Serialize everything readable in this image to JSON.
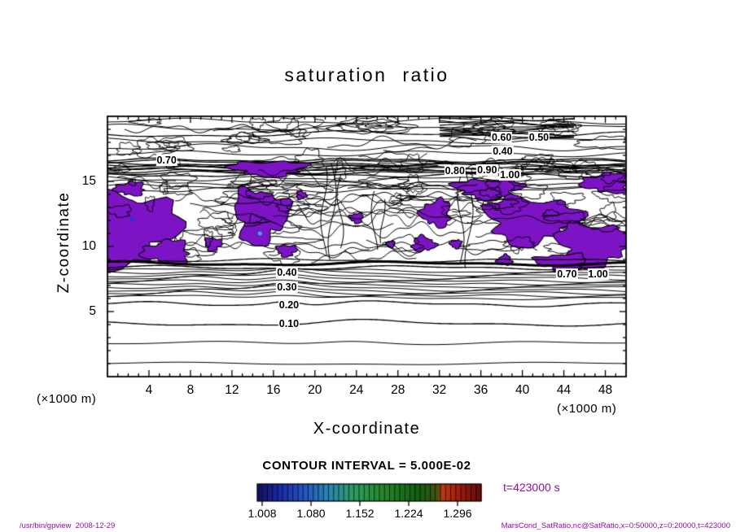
{
  "window": {
    "background": "#ffffff"
  },
  "footer": {
    "left": "/usr/bin/gpview  2008-12-29",
    "right": "MarsCond_SatRatio.nc@SatRatio,x=0:50000,z=0:20000,t=423000"
  },
  "colors": {
    "text": "#000000",
    "annotation": "#8e109e",
    "contour_line": "#000000",
    "fill_purple": "#7c13c4",
    "speck_blue": "#2436d8",
    "speck_cyan": "#25b8dc"
  },
  "chart_data": {
    "type": "contour",
    "title": "saturation ratio",
    "xlabel": "X-coordinate",
    "ylabel": "Z-coordinate",
    "x_unit_left": "(×1000 m)",
    "x_unit_right": "(×1000 m)",
    "xlim": [
      0,
      50
    ],
    "ylim": [
      0,
      20
    ],
    "x_ticks": [
      4,
      8,
      12,
      16,
      20,
      24,
      28,
      32,
      36,
      40,
      44,
      48
    ],
    "y_ticks": [
      5,
      10,
      15
    ],
    "grid": false,
    "contour_interval": 0.05,
    "contour_interval_label": "CONTOUR INTERVAL = 5.000E-02",
    "time_annotation": "t=423000 s",
    "contour_labels": [
      {
        "text": "0.10",
        "x": 17.5,
        "z": 4.05
      },
      {
        "text": "0.20",
        "x": 17.5,
        "z": 5.5
      },
      {
        "text": "0.30",
        "x": 17.3,
        "z": 6.9
      },
      {
        "text": "0.40",
        "x": 17.3,
        "z": 8.0
      },
      {
        "text": "0.70",
        "x": 44.3,
        "z": 7.9
      },
      {
        "text": "1.00",
        "x": 47.3,
        "z": 7.9
      },
      {
        "text": "0.70",
        "x": 5.7,
        "z": 16.6
      },
      {
        "text": "0.80",
        "x": 33.5,
        "z": 15.8
      },
      {
        "text": "0.90",
        "x": 36.6,
        "z": 15.9
      },
      {
        "text": "1.00",
        "x": 38.8,
        "z": 15.5
      },
      {
        "text": "0.40",
        "x": 38.1,
        "z": 17.3
      },
      {
        "text": "0.60",
        "x": 38.0,
        "z": 18.4
      },
      {
        "text": "0.50",
        "x": 41.6,
        "z": 18.4
      }
    ],
    "blobs": [
      {
        "x": 1.41,
        "z": 11.44,
        "rx": 5.1,
        "rz": 2.81
      },
      {
        "x": 5.73,
        "z": 9.56,
        "rx": 2.2,
        "rz": 0.88
      },
      {
        "x": 15.54,
        "z": 16.0,
        "rx": 3.53,
        "rz": 0.56
      },
      {
        "x": 14.76,
        "z": 12.38,
        "rx": 2.51,
        "rz": 2.06
      },
      {
        "x": 10.2,
        "z": 10.19,
        "rx": 0.78,
        "rz": 0.5
      },
      {
        "x": 17.27,
        "z": 9.69,
        "rx": 0.94,
        "rz": 0.44
      },
      {
        "x": 24.02,
        "z": 12.19,
        "rx": 0.63,
        "rz": 0.38
      },
      {
        "x": 30.46,
        "z": 10.19,
        "rx": 1.1,
        "rz": 0.56
      },
      {
        "x": 31.71,
        "z": 12.56,
        "rx": 1.41,
        "rz": 1.0
      },
      {
        "x": 36.74,
        "z": 14.44,
        "rx": 3.14,
        "rz": 0.75
      },
      {
        "x": 40.82,
        "z": 12.06,
        "rx": 4.32,
        "rz": 1.75
      },
      {
        "x": 46.94,
        "z": 10.19,
        "rx": 3.53,
        "rz": 1.63
      },
      {
        "x": 48.12,
        "z": 14.88,
        "rx": 2.2,
        "rz": 0.75
      },
      {
        "x": 43.8,
        "z": 8.81,
        "rx": 2.35,
        "rz": 0.63
      },
      {
        "x": 2.2,
        "z": 14.44,
        "rx": 1.41,
        "rz": 0.5
      },
      {
        "x": 18.68,
        "z": 13.94,
        "rx": 0.47,
        "rz": 0.31
      },
      {
        "x": 27.32,
        "z": 10.19,
        "rx": 0.39,
        "rz": 0.25
      },
      {
        "x": 33.6,
        "z": 10.19,
        "rx": 0.55,
        "rz": 0.31
      },
      {
        "x": 38.3,
        "z": 8.94,
        "rx": 0.71,
        "rz": 0.38
      }
    ],
    "specks": [
      {
        "x": 2.4,
        "z": 12.1,
        "r": 2.5,
        "color": "blue"
      },
      {
        "x": 14.7,
        "z": 11.0,
        "r": 2.5,
        "color": "cyan"
      },
      {
        "x": 17.2,
        "z": 13.2,
        "r": 2.0,
        "color": "blue"
      }
    ],
    "colorbar": {
      "tick_labels": [
        "1.008",
        "1.080",
        "1.152",
        "1.224",
        "1.296"
      ],
      "tick_values": [
        1.008,
        1.08,
        1.152,
        1.224,
        1.296
      ],
      "stops": [
        {
          "p": 0.0,
          "c": "#12125a"
        },
        {
          "p": 0.1,
          "c": "#1a2aa6"
        },
        {
          "p": 0.2,
          "c": "#2450c2"
        },
        {
          "p": 0.32,
          "c": "#2a86b4"
        },
        {
          "p": 0.44,
          "c": "#2f9c5a"
        },
        {
          "p": 0.58,
          "c": "#238424"
        },
        {
          "p": 0.72,
          "c": "#145e13"
        },
        {
          "p": 0.8,
          "c": "#3c560f"
        },
        {
          "p": 0.83,
          "c": "#c03517"
        },
        {
          "p": 0.92,
          "c": "#96180d"
        },
        {
          "p": 1.0,
          "c": "#640d07"
        }
      ]
    }
  }
}
